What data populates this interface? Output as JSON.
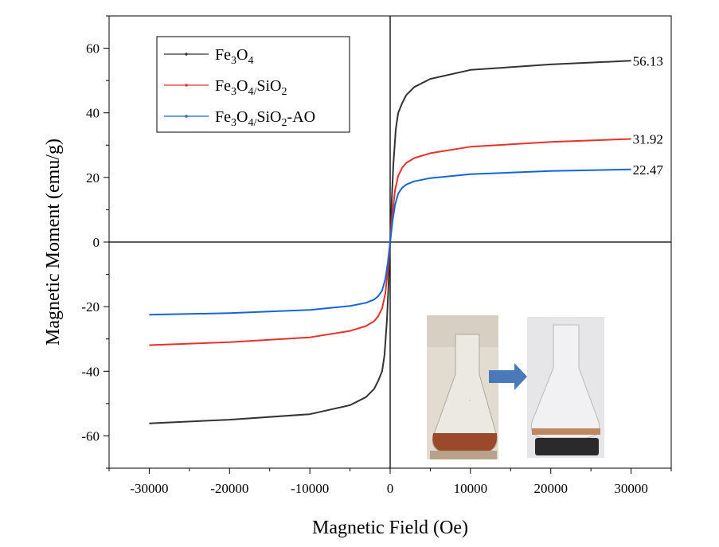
{
  "chart_data": {
    "type": "line",
    "title": "",
    "xlabel": "Magnetic Field (Oe)",
    "ylabel": "Magnetic Moment (emu/g)",
    "xlim": [
      -35000,
      35000
    ],
    "ylim": [
      -70,
      70
    ],
    "xticks": [
      -30000,
      -20000,
      -10000,
      0,
      10000,
      20000,
      30000
    ],
    "xtick_labels": [
      "-30000",
      "-20000",
      "-10000",
      "0",
      "10000",
      "20000",
      "30000"
    ],
    "yticks": [
      -60,
      -40,
      -20,
      0,
      20,
      40,
      60
    ],
    "ytick_labels": [
      "-60",
      "-40",
      "-20",
      "0",
      "20",
      "40",
      "60"
    ],
    "grid": false,
    "legend_position": "top-left",
    "series": [
      {
        "name": "Fe3O4",
        "legend_parts": [
          [
            "Fe",
            ""
          ],
          [
            "3",
            "sub"
          ],
          [
            "O",
            ""
          ],
          [
            "4",
            "sub"
          ]
        ],
        "color": "#333333",
        "x": [
          -30000,
          -20000,
          -10000,
          -5000,
          -3000,
          -2000,
          -1500,
          -1000,
          -700,
          -400,
          -200,
          0,
          200,
          400,
          700,
          1000,
          1500,
          2000,
          3000,
          5000,
          10000,
          20000,
          30000
        ],
        "y": [
          -56.13,
          -55.0,
          -53.3,
          -50.5,
          -48.0,
          -45.5,
          -43.0,
          -40.0,
          -35.0,
          -24.0,
          -13.0,
          0,
          13.0,
          24.0,
          35.0,
          40.0,
          43.0,
          45.5,
          48.0,
          50.5,
          53.3,
          55.0,
          56.13
        ],
        "end_label": "56.13"
      },
      {
        "name": "Fe3O4/SiO2",
        "legend_parts": [
          [
            "Fe",
            ""
          ],
          [
            "3",
            "sub"
          ],
          [
            "O",
            ""
          ],
          [
            "4/",
            "sub"
          ],
          [
            "SiO",
            ""
          ],
          [
            "2",
            "sub"
          ]
        ],
        "color": "#e8302c",
        "x": [
          -30000,
          -20000,
          -10000,
          -5000,
          -3000,
          -2000,
          -1500,
          -1000,
          -600,
          -300,
          0,
          300,
          600,
          1000,
          1500,
          2000,
          3000,
          5000,
          10000,
          20000,
          30000
        ],
        "y": [
          -31.92,
          -31.0,
          -29.5,
          -27.5,
          -26.0,
          -24.5,
          -23.0,
          -20.5,
          -16.0,
          -9.0,
          0,
          9.0,
          16.0,
          20.5,
          23.0,
          24.5,
          26.0,
          27.5,
          29.5,
          31.0,
          31.92
        ],
        "end_label": "31.92"
      },
      {
        "name": "Fe3O4/SiO2-AO",
        "legend_parts": [
          [
            "Fe",
            ""
          ],
          [
            "3",
            "sub"
          ],
          [
            "O",
            ""
          ],
          [
            "4/",
            "sub"
          ],
          [
            "SiO",
            ""
          ],
          [
            "2",
            "sub"
          ],
          [
            "-AO",
            ""
          ]
        ],
        "color": "#1565d8",
        "x": [
          -30000,
          -20000,
          -10000,
          -5000,
          -3000,
          -2000,
          -1500,
          -1000,
          -600,
          -300,
          0,
          300,
          600,
          1000,
          1500,
          2000,
          3000,
          5000,
          10000,
          20000,
          30000
        ],
        "y": [
          -22.47,
          -22.0,
          -21.0,
          -19.8,
          -18.8,
          -17.8,
          -16.8,
          -15.0,
          -11.5,
          -6.5,
          0,
          6.5,
          11.5,
          15.0,
          16.8,
          17.8,
          18.8,
          19.8,
          21.0,
          22.0,
          22.47
        ],
        "end_label": "22.47"
      }
    ]
  },
  "inset": {
    "arrow_color": "#4a79b9"
  }
}
